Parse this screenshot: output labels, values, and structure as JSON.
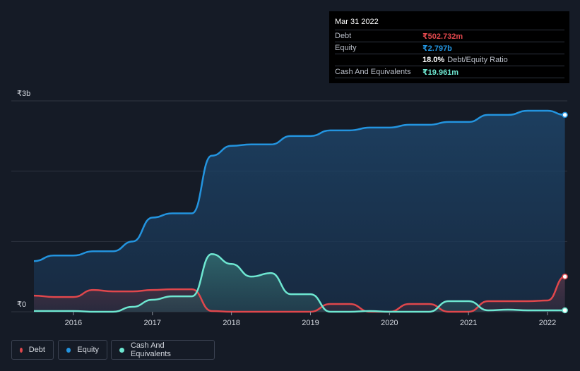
{
  "colors": {
    "background": "#151b26",
    "debt": "#e0474c",
    "equity": "#2394df",
    "cash": "#6ee7d1",
    "gridline": "#2e3440"
  },
  "tooltip": {
    "date": "Mar 31 2022",
    "rows": [
      {
        "label": "Debt",
        "value": "₹502.732m",
        "extra": ""
      },
      {
        "label": "Equity",
        "value": "₹2.797b",
        "extra": ""
      },
      {
        "label": "",
        "value": "18.0%",
        "extra": "Debt/Equity Ratio"
      },
      {
        "label": "Cash And Equivalents",
        "value": "₹19.961m",
        "extra": ""
      }
    ]
  },
  "legend": [
    {
      "name": "Debt",
      "icon": "debt-dot-icon"
    },
    {
      "name": "Equity",
      "icon": "equity-dot-icon"
    },
    {
      "name": "Cash And Equivalents",
      "icon": "cash-dot-icon"
    }
  ],
  "chart_data": {
    "type": "area",
    "title": "",
    "xlabel": "",
    "ylabel": "",
    "y_unit": "₹ billions",
    "ylim": [
      0,
      3
    ],
    "y_tick_labels": [
      {
        "value": 0,
        "label": "₹0"
      },
      {
        "value": 3,
        "label": "₹3b"
      }
    ],
    "x_range": [
      2015.5,
      2022.25
    ],
    "x_ticks": [
      2016,
      2017,
      2018,
      2019,
      2020,
      2021,
      2022
    ],
    "series": [
      {
        "name": "Equity",
        "points": [
          [
            2015.5,
            0.72
          ],
          [
            2015.75,
            0.8
          ],
          [
            2016.0,
            0.8
          ],
          [
            2016.25,
            0.86
          ],
          [
            2016.5,
            0.86
          ],
          [
            2016.75,
            1.0
          ],
          [
            2017.0,
            1.34
          ],
          [
            2017.25,
            1.4
          ],
          [
            2017.5,
            1.4
          ],
          [
            2017.75,
            2.22
          ],
          [
            2018.0,
            2.36
          ],
          [
            2018.25,
            2.38
          ],
          [
            2018.5,
            2.38
          ],
          [
            2018.75,
            2.5
          ],
          [
            2019.0,
            2.5
          ],
          [
            2019.25,
            2.58
          ],
          [
            2019.5,
            2.58
          ],
          [
            2019.75,
            2.62
          ],
          [
            2020.0,
            2.62
          ],
          [
            2020.25,
            2.66
          ],
          [
            2020.5,
            2.66
          ],
          [
            2020.75,
            2.7
          ],
          [
            2021.0,
            2.7
          ],
          [
            2021.25,
            2.8
          ],
          [
            2021.5,
            2.8
          ],
          [
            2021.75,
            2.86
          ],
          [
            2022.0,
            2.86
          ],
          [
            2022.22,
            2.8
          ]
        ]
      },
      {
        "name": "Debt",
        "points": [
          [
            2015.5,
            0.23
          ],
          [
            2015.75,
            0.21
          ],
          [
            2016.0,
            0.21
          ],
          [
            2016.25,
            0.31
          ],
          [
            2016.5,
            0.29
          ],
          [
            2016.75,
            0.29
          ],
          [
            2017.0,
            0.31
          ],
          [
            2017.25,
            0.32
          ],
          [
            2017.5,
            0.32
          ],
          [
            2017.75,
            0.01
          ],
          [
            2018.0,
            0.0
          ],
          [
            2018.25,
            0.0
          ],
          [
            2018.5,
            0.0
          ],
          [
            2018.75,
            0.0
          ],
          [
            2019.0,
            0.0
          ],
          [
            2019.25,
            0.11
          ],
          [
            2019.5,
            0.11
          ],
          [
            2019.75,
            0.0
          ],
          [
            2020.0,
            0.0
          ],
          [
            2020.25,
            0.11
          ],
          [
            2020.5,
            0.11
          ],
          [
            2020.75,
            0.0
          ],
          [
            2021.0,
            0.0
          ],
          [
            2021.25,
            0.15
          ],
          [
            2021.5,
            0.15
          ],
          [
            2021.75,
            0.15
          ],
          [
            2022.0,
            0.16
          ],
          [
            2022.22,
            0.5
          ]
        ]
      },
      {
        "name": "Cash And Equivalents",
        "points": [
          [
            2015.5,
            0.01
          ],
          [
            2015.75,
            0.01
          ],
          [
            2016.0,
            0.01
          ],
          [
            2016.25,
            0.0
          ],
          [
            2016.5,
            0.0
          ],
          [
            2016.75,
            0.07
          ],
          [
            2017.0,
            0.17
          ],
          [
            2017.25,
            0.22
          ],
          [
            2017.5,
            0.22
          ],
          [
            2017.75,
            0.82
          ],
          [
            2018.0,
            0.68
          ],
          [
            2018.25,
            0.5
          ],
          [
            2018.5,
            0.55
          ],
          [
            2018.75,
            0.25
          ],
          [
            2019.0,
            0.25
          ],
          [
            2019.25,
            0.0
          ],
          [
            2019.5,
            0.0
          ],
          [
            2019.75,
            0.01
          ],
          [
            2020.0,
            0.0
          ],
          [
            2020.25,
            0.0
          ],
          [
            2020.5,
            0.0
          ],
          [
            2020.75,
            0.15
          ],
          [
            2021.0,
            0.15
          ],
          [
            2021.25,
            0.02
          ],
          [
            2021.5,
            0.03
          ],
          [
            2021.75,
            0.02
          ],
          [
            2022.0,
            0.02
          ],
          [
            2022.22,
            0.02
          ]
        ]
      }
    ]
  }
}
